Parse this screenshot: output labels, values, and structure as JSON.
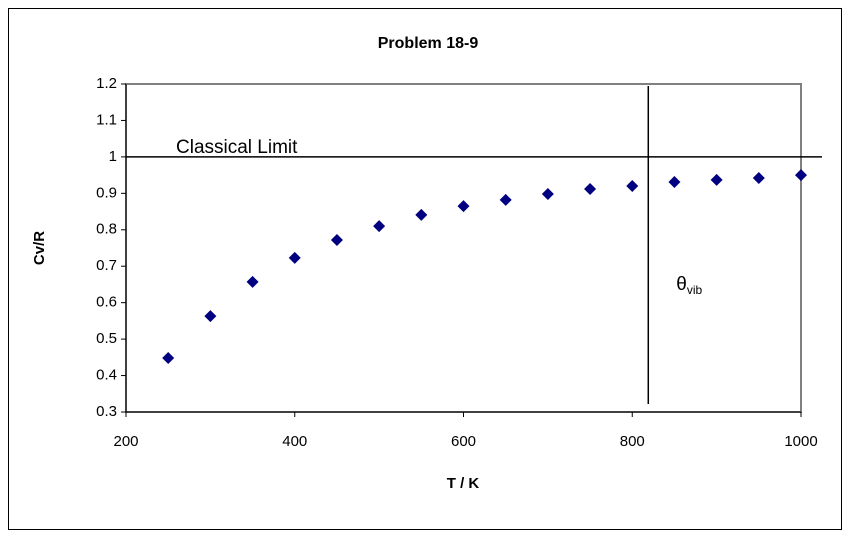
{
  "chart_data": {
    "type": "scatter",
    "title": "Problem 18-9",
    "x_label": "T / K",
    "y_label": "Cv/R",
    "x": [
      250,
      300,
      350,
      400,
      450,
      500,
      550,
      600,
      650,
      700,
      750,
      800,
      850,
      900,
      950,
      1000
    ],
    "values": [
      0.448,
      0.563,
      0.657,
      0.723,
      0.772,
      0.81,
      0.841,
      0.865,
      0.882,
      0.898,
      0.912,
      0.92,
      0.931,
      0.937,
      0.942,
      0.95
    ],
    "color": "#000080",
    "xlim": [
      200,
      1000
    ],
    "xticks": [
      200,
      400,
      600,
      800,
      1000
    ],
    "ylim": [
      0.3,
      1.2
    ],
    "yticks": [
      0.3,
      0.4,
      0.5,
      0.6,
      0.7,
      0.8,
      0.9,
      1,
      1.1,
      1.2
    ],
    "grid": false,
    "classical_limit": {
      "label": "Classical Limit",
      "y": 1
    },
    "theta_vib": {
      "symbol": "θ",
      "subscript": "vib",
      "x": 819
    }
  }
}
